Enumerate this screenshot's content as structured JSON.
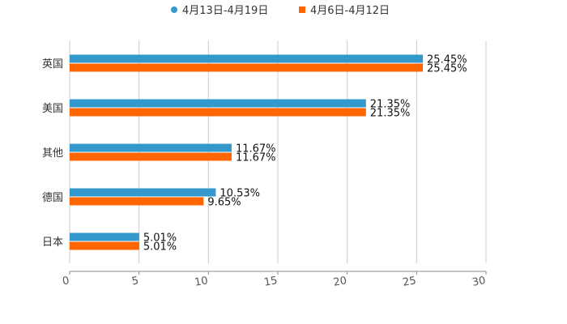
{
  "chart_data": {
    "type": "bar",
    "orientation": "horizontal",
    "title": "",
    "xlabel": "",
    "ylabel": "",
    "categories": [
      "英国",
      "美国",
      "其他",
      "德国",
      "日本"
    ],
    "series": [
      {
        "name": "4月13日-4月19日",
        "color": "#3399cc",
        "values": [
          25.45,
          21.35,
          11.67,
          10.53,
          5.01
        ],
        "labels": [
          "25.45%",
          "21.35%",
          "11.67%",
          "10.53%",
          "5.01%"
        ]
      },
      {
        "name": "4月6日-4月12日",
        "color": "#ff6600",
        "values": [
          25.45,
          21.35,
          11.67,
          9.65,
          5.01
        ],
        "labels": [
          "25.45%",
          "21.35%",
          "11.67%",
          "9.65%",
          "5.01%"
        ]
      }
    ],
    "xlim": [
      0,
      30
    ],
    "xticks": [
      "0",
      "5",
      "10",
      "15",
      "20",
      "25",
      "30"
    ],
    "grid": true,
    "legend_position": "top-center"
  }
}
